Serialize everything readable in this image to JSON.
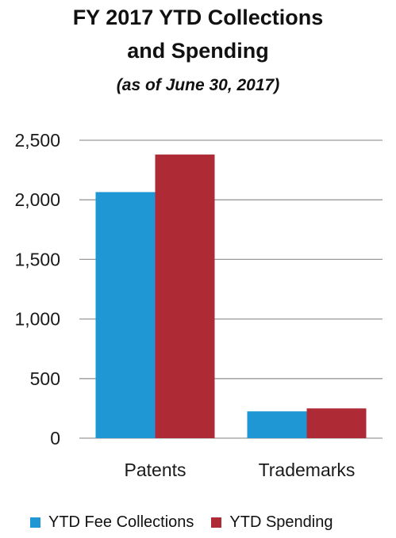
{
  "chart_data": {
    "type": "bar",
    "title_line1": "FY 2017 YTD Collections",
    "title_line2": "and Spending",
    "subtitle": "(as of June 30, 2017)",
    "categories": [
      "Patents",
      "Trademarks"
    ],
    "series": [
      {
        "name": "YTD Fee Collections",
        "color": "#1f97d4",
        "values": [
          2065,
          225
        ]
      },
      {
        "name": "YTD Spending",
        "color": "#ae2b36",
        "values": [
          2380,
          250
        ]
      }
    ],
    "ylim": [
      0,
      2500
    ],
    "yticks": [
      0,
      500,
      1000,
      1500,
      2000,
      2500
    ],
    "ytick_labels": [
      "0",
      "500",
      "1,000",
      "1,500",
      "2,000",
      "2,500"
    ],
    "grid": true,
    "legend_position": "bottom"
  }
}
